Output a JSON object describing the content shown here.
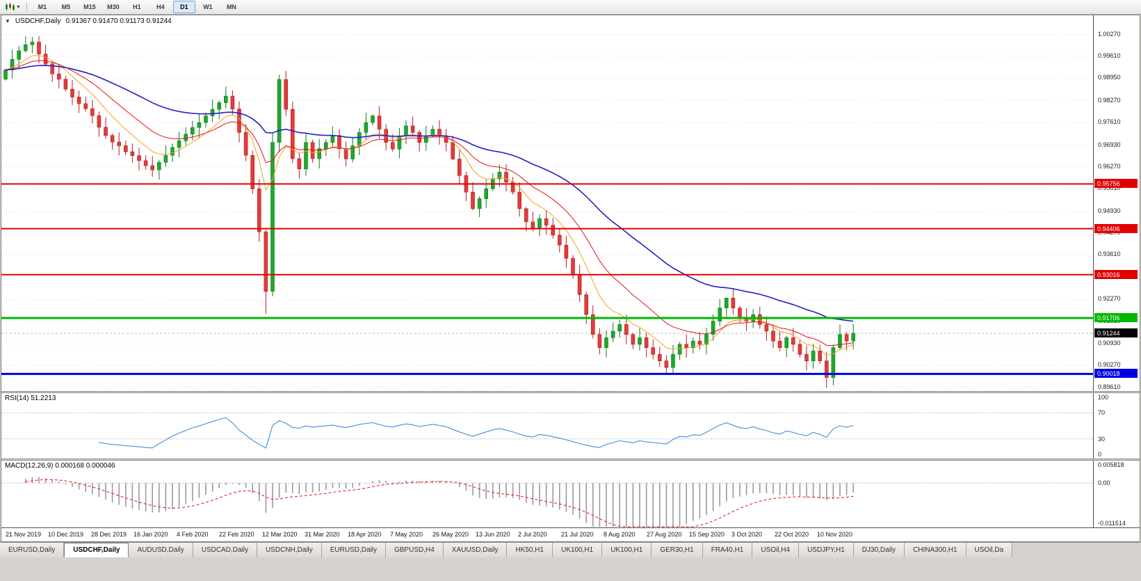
{
  "toolbar": {
    "timeframes": [
      "M1",
      "M5",
      "M15",
      "M30",
      "H1",
      "H4",
      "D1",
      "W1",
      "MN"
    ],
    "active_timeframe": "D1"
  },
  "chart": {
    "symbol_label": "USDCHF,Daily",
    "ohlc": "0.91367 0.91470 0.91173 0.91244",
    "open": "0.91367",
    "high": "0.91470",
    "low": "0.91173",
    "close": "0.91244"
  },
  "price_axis": {
    "ticks": [
      "1.00270",
      "0.99610",
      "0.98950",
      "0.98270",
      "0.97610",
      "0.96930",
      "0.96270",
      "0.95610",
      "0.94930",
      "0.94270",
      "0.93610",
      "0.92930",
      "0.92270",
      "0.91610",
      "0.90930",
      "0.90270",
      "0.89610"
    ],
    "current_price": "0.91244"
  },
  "levels": [
    {
      "value": 0.95756,
      "label": "0.95756",
      "color": "#E00000",
      "width": 2
    },
    {
      "value": 0.94406,
      "label": "0.94406",
      "color": "#E00000",
      "width": 2
    },
    {
      "value": 0.93016,
      "label": "0.93016",
      "color": "#E00000",
      "width": 2
    },
    {
      "value": 0.91706,
      "label": "0.91706",
      "color": "#00B800",
      "width": 3
    },
    {
      "value": 0.90018,
      "label": "0.90018",
      "color": "#0000E0",
      "width": 3
    }
  ],
  "indicators": {
    "rsi": {
      "label": "RSI(14) 51.2213",
      "period": 14,
      "last_value": 51.2213,
      "axis_levels": [
        "100",
        "70",
        "30",
        "0"
      ],
      "guide_levels": [
        70,
        30
      ]
    },
    "macd": {
      "label": "MACD(12,26,9) 0.000168 0.000046",
      "fast": 12,
      "slow": 26,
      "signal": 9,
      "last_main": 0.000168,
      "last_signal": 4.6e-05,
      "axis_labels": [
        "0.005818",
        "0.00",
        "-0.011514"
      ],
      "range": [
        -0.011514,
        0.005818
      ]
    }
  },
  "date_axis": [
    "21 Nov 2019",
    "10 Dec 2019",
    "28 Dec 2019",
    "16 Jan 2020",
    "4 Feb 2020",
    "22 Feb 2020",
    "12 Mar 2020",
    "31 Mar 2020",
    "18 Apr 2020",
    "7 May 2020",
    "26 May 2020",
    "13 Jun 2020",
    "2 Jul 2020",
    "21 Jul 2020",
    "8 Aug 2020",
    "27 Aug 2020",
    "15 Sep 2020",
    "3 Oct 2020",
    "22 Oct 2020",
    "10 Nov 2020"
  ],
  "tabs": [
    "EURUSD,Daily",
    "USDCHF,Daily",
    "AUDUSD,Daily",
    "USDCAD,Daily",
    "USDCNH,Daily",
    "EURUSD,Daily",
    "GBPUSD,H4",
    "XAUUSD,Daily",
    "HK50,H1",
    "UK100,H1",
    "UK100,H1",
    "GER30,H1",
    "FRA40,H1",
    "USOil,H4",
    "USDJPY,H1",
    "DJ30,Daily",
    "CHINA300,H1",
    "USOil,Da"
  ],
  "active_tab_index": 1,
  "chart_data": {
    "type": "candlestick",
    "symbol": "USDCHF",
    "timeframe": "Daily",
    "x_range": [
      "21 Nov 2019",
      "18 Nov 2020"
    ],
    "price_range": [
      0.895,
      1.0085
    ],
    "closes": [
      0.992,
      0.9952,
      0.9978,
      0.9996,
      1.0004,
      0.9968,
      0.9938,
      0.9908,
      0.9892,
      0.9862,
      0.9838,
      0.9818,
      0.9803,
      0.9782,
      0.9747,
      0.9722,
      0.9702,
      0.9691,
      0.9673,
      0.9661,
      0.9646,
      0.9631,
      0.9618,
      0.9641,
      0.9662,
      0.9686,
      0.9706,
      0.9726,
      0.9746,
      0.9761,
      0.9781,
      0.9801,
      0.9821,
      0.9841,
      0.9802,
      0.9731,
      0.9662,
      0.9561,
      0.9431,
      0.9251,
      0.9701,
      0.9891,
      0.9801,
      0.9652,
      0.9621,
      0.9701,
      0.9652,
      0.9682,
      0.9701,
      0.9722,
      0.9682,
      0.9651,
      0.9691,
      0.9731,
      0.9761,
      0.9781,
      0.9741,
      0.9701,
      0.9681,
      0.9721,
      0.9751,
      0.9731,
      0.9701,
      0.9721,
      0.9741,
      0.9721,
      0.9701,
      0.9651,
      0.9601,
      0.9551,
      0.9501,
      0.9531,
      0.9561,
      0.9591,
      0.9611,
      0.9581,
      0.9551,
      0.9501,
      0.9461,
      0.9441,
      0.9471,
      0.9451,
      0.9421,
      0.9391,
      0.9351,
      0.9301,
      0.9241,
      0.9181,
      0.9121,
      0.9081,
      0.9111,
      0.9131,
      0.9151,
      0.9121,
      0.9091,
      0.9111,
      0.9081,
      0.9061,
      0.9041,
      0.9021,
      0.9061,
      0.9091,
      0.9081,
      0.9101,
      0.9091,
      0.9121,
      0.9161,
      0.9201,
      0.9231,
      0.9201,
      0.9171,
      0.9161,
      0.9181,
      0.9151,
      0.9131,
      0.9101,
      0.9081,
      0.9111,
      0.9091,
      0.9061,
      0.9041,
      0.9071,
      0.9041,
      0.8991,
      0.9081,
      0.9121,
      0.9101,
      0.91244
    ],
    "spike_highs": [
      [
        4,
        1.002
      ],
      [
        41,
        0.9905
      ],
      [
        108,
        0.9232
      ]
    ],
    "spike_lows": [
      [
        39,
        0.9183
      ],
      [
        99,
        0.9001
      ],
      [
        123,
        0.896
      ]
    ],
    "moving_averages": [
      {
        "name": "fast",
        "period": 8,
        "color": "#F5A020",
        "width": 1
      },
      {
        "name": "medium",
        "period": 16,
        "color": "#E81010",
        "width": 1
      },
      {
        "name": "slow",
        "period": 40,
        "color": "#2020C8",
        "width": 1.6
      }
    ],
    "colors": {
      "bull_fill": "#1FA82C",
      "bull_stroke": "#0E7A1E",
      "bear_fill": "#E23B3B",
      "bear_stroke": "#B21F1F",
      "grid": "#DCDCDC",
      "rsi_line": "#3E8EDE",
      "macd_hist": "#9A9A9A",
      "macd_signal": "#E81010",
      "current_price_line": "#B5B5B5"
    }
  }
}
